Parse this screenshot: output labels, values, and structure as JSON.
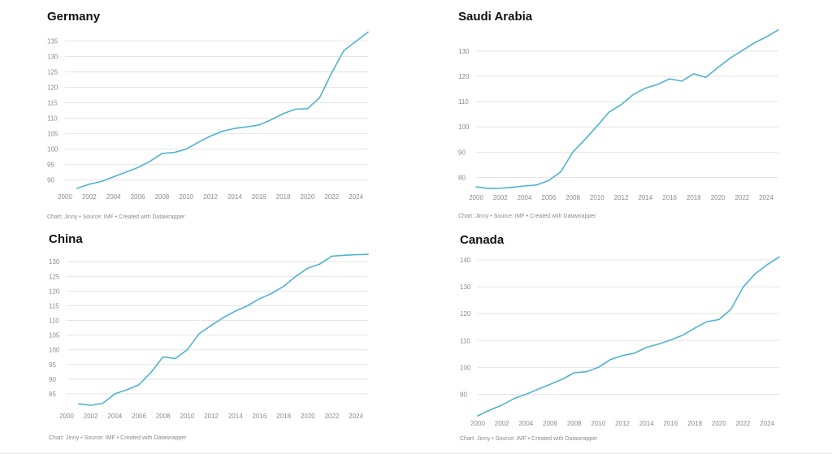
{
  "page": {
    "tool": "Datawrapper"
  },
  "chart_data": [
    {
      "type": "line",
      "title": "Germany",
      "footer": "Chart: Jinny • Source: IMF • Created with Datawrapper",
      "line_color": "#4fb3d0",
      "xlim": [
        2000,
        2025
      ],
      "ylim": [
        87,
        137.5
      ],
      "xticks": [
        2000,
        2002,
        2004,
        2006,
        2008,
        2010,
        2012,
        2014,
        2016,
        2018,
        2020,
        2022,
        2024
      ],
      "yticks": [
        90,
        95,
        100,
        105,
        110,
        115,
        120,
        125,
        130,
        135
      ],
      "x": [
        2001,
        2002,
        2003,
        2004,
        2005,
        2006,
        2007,
        2008,
        2009,
        2010,
        2011,
        2012,
        2013,
        2014,
        2015,
        2016,
        2017,
        2018,
        2019,
        2020,
        2021,
        2022,
        2023,
        2024,
        2025
      ],
      "values": [
        87.3,
        88.6,
        89.5,
        91.0,
        92.5,
        94.0,
        96.0,
        98.6,
        98.9,
        100.0,
        102.2,
        104.2,
        105.8,
        106.7,
        107.2,
        107.8,
        109.5,
        111.5,
        112.9,
        113.1,
        116.6,
        124.7,
        131.9,
        134.9,
        137.9
      ]
    },
    {
      "type": "line",
      "title": "Saudi Arabia",
      "footer": "Chart: Jinny • Source: IMF • Created with Datawrapper",
      "line_color": "#4fb3d0",
      "xlim": [
        2000,
        2025
      ],
      "ylim": [
        75,
        138
      ],
      "xticks": [
        2000,
        2002,
        2004,
        2006,
        2008,
        2010,
        2012,
        2014,
        2016,
        2018,
        2020,
        2022,
        2024
      ],
      "yticks": [
        80,
        90,
        100,
        110,
        120,
        130
      ],
      "x": [
        2000,
        2001,
        2002,
        2003,
        2004,
        2005,
        2006,
        2007,
        2008,
        2009,
        2010,
        2011,
        2012,
        2013,
        2014,
        2015,
        2016,
        2017,
        2018,
        2019,
        2020,
        2021,
        2022,
        2023,
        2024,
        2025
      ],
      "values": [
        76.3,
        75.6,
        75.7,
        76.1,
        76.6,
        77.0,
        78.8,
        82.2,
        90.0,
        95.0,
        100.3,
        105.9,
        108.8,
        112.8,
        115.3,
        116.8,
        119.0,
        118.1,
        121.0,
        119.6,
        123.5,
        127.2,
        130.2,
        133.2,
        135.6,
        138.4
      ]
    },
    {
      "type": "line",
      "title": "China",
      "footer": "Chart: Jinny • Source: IMF • Created with Datawrapper",
      "line_color": "#4fb3d0",
      "xlim": [
        2000,
        2025
      ],
      "ylim": [
        80,
        132
      ],
      "xticks": [
        2000,
        2002,
        2004,
        2006,
        2008,
        2010,
        2012,
        2014,
        2016,
        2018,
        2020,
        2022,
        2024
      ],
      "yticks": [
        85,
        90,
        95,
        100,
        105,
        110,
        115,
        120,
        125,
        130
      ],
      "x": [
        2001,
        2002,
        2003,
        2004,
        2005,
        2006,
        2007,
        2008,
        2009,
        2010,
        2011,
        2012,
        2013,
        2014,
        2015,
        2016,
        2017,
        2018,
        2019,
        2020,
        2021,
        2022,
        2023,
        2024,
        2025
      ],
      "values": [
        81.6,
        81.1,
        81.8,
        85.0,
        86.4,
        88.1,
        92.3,
        97.6,
        97.0,
        100.0,
        105.5,
        108.3,
        111.0,
        113.2,
        115.0,
        117.4,
        119.2,
        121.6,
        125.0,
        127.8,
        129.2,
        131.9,
        132.2,
        132.4,
        132.5
      ]
    },
    {
      "type": "line",
      "title": "Canada",
      "footer": "Chart: Jinny • Source: IMF • Created with Datawrapper",
      "line_color": "#4fb3d0",
      "xlim": [
        2000,
        2025
      ],
      "ylim": [
        82,
        141.5
      ],
      "xticks": [
        2000,
        2002,
        2004,
        2006,
        2008,
        2010,
        2012,
        2014,
        2016,
        2018,
        2020,
        2022,
        2024
      ],
      "yticks": [
        90,
        100,
        110,
        120,
        130,
        140
      ],
      "x": [
        2000,
        2001,
        2002,
        2003,
        2004,
        2005,
        2006,
        2007,
        2008,
        2009,
        2010,
        2011,
        2012,
        2013,
        2014,
        2015,
        2016,
        2017,
        2018,
        2019,
        2020,
        2021,
        2022,
        2023,
        2024,
        2025
      ],
      "values": [
        82.0,
        84.1,
        86.0,
        88.4,
        90.0,
        91.9,
        93.7,
        95.6,
        98.0,
        98.4,
        100.0,
        102.9,
        104.4,
        105.3,
        107.5,
        108.7,
        110.2,
        112.0,
        114.6,
        117.0,
        117.8,
        121.6,
        129.8,
        134.8,
        138.2,
        141.1
      ]
    }
  ]
}
